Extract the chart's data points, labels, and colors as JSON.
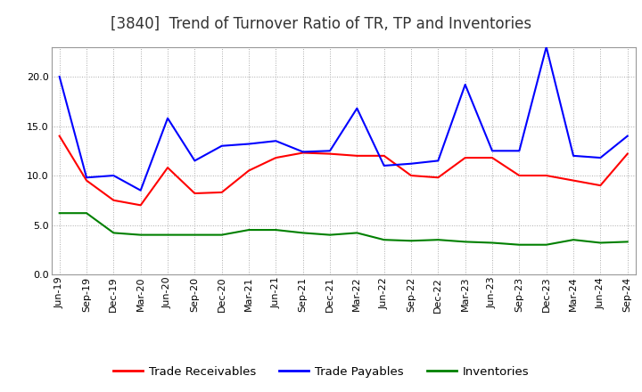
{
  "title": "[3840]  Trend of Turnover Ratio of TR, TP and Inventories",
  "x_labels": [
    "Jun-19",
    "Sep-19",
    "Dec-19",
    "Mar-20",
    "Jun-20",
    "Sep-20",
    "Dec-20",
    "Mar-21",
    "Jun-21",
    "Sep-21",
    "Dec-21",
    "Mar-22",
    "Jun-22",
    "Sep-22",
    "Dec-22",
    "Mar-23",
    "Jun-23",
    "Sep-23",
    "Dec-23",
    "Mar-24",
    "Jun-24",
    "Sep-24"
  ],
  "trade_receivables": [
    14.0,
    9.5,
    7.5,
    7.0,
    10.8,
    8.2,
    8.3,
    10.5,
    11.8,
    12.3,
    12.2,
    12.0,
    12.0,
    10.0,
    9.8,
    11.8,
    11.8,
    10.0,
    10.0,
    9.5,
    9.0,
    12.2
  ],
  "trade_payables": [
    20.0,
    9.8,
    10.0,
    8.5,
    15.8,
    11.5,
    13.0,
    13.2,
    13.5,
    12.4,
    12.5,
    16.8,
    11.0,
    11.2,
    11.5,
    19.2,
    12.5,
    12.5,
    23.0,
    12.0,
    11.8,
    14.0
  ],
  "inventories": [
    6.2,
    6.2,
    4.2,
    4.0,
    4.0,
    4.0,
    4.0,
    4.5,
    4.5,
    4.2,
    4.0,
    4.2,
    3.5,
    3.4,
    3.5,
    3.3,
    3.2,
    3.0,
    3.0,
    3.5,
    3.2,
    3.3
  ],
  "ylim": [
    0.0,
    23.0
  ],
  "yticks": [
    0.0,
    5.0,
    10.0,
    15.0,
    20.0
  ],
  "tr_color": "#ff0000",
  "tp_color": "#0000ff",
  "inv_color": "#008000",
  "bg_color": "#ffffff",
  "grid_color": "#aaaaaa",
  "title_fontsize": 12,
  "legend_fontsize": 9.5,
  "axis_fontsize": 8
}
